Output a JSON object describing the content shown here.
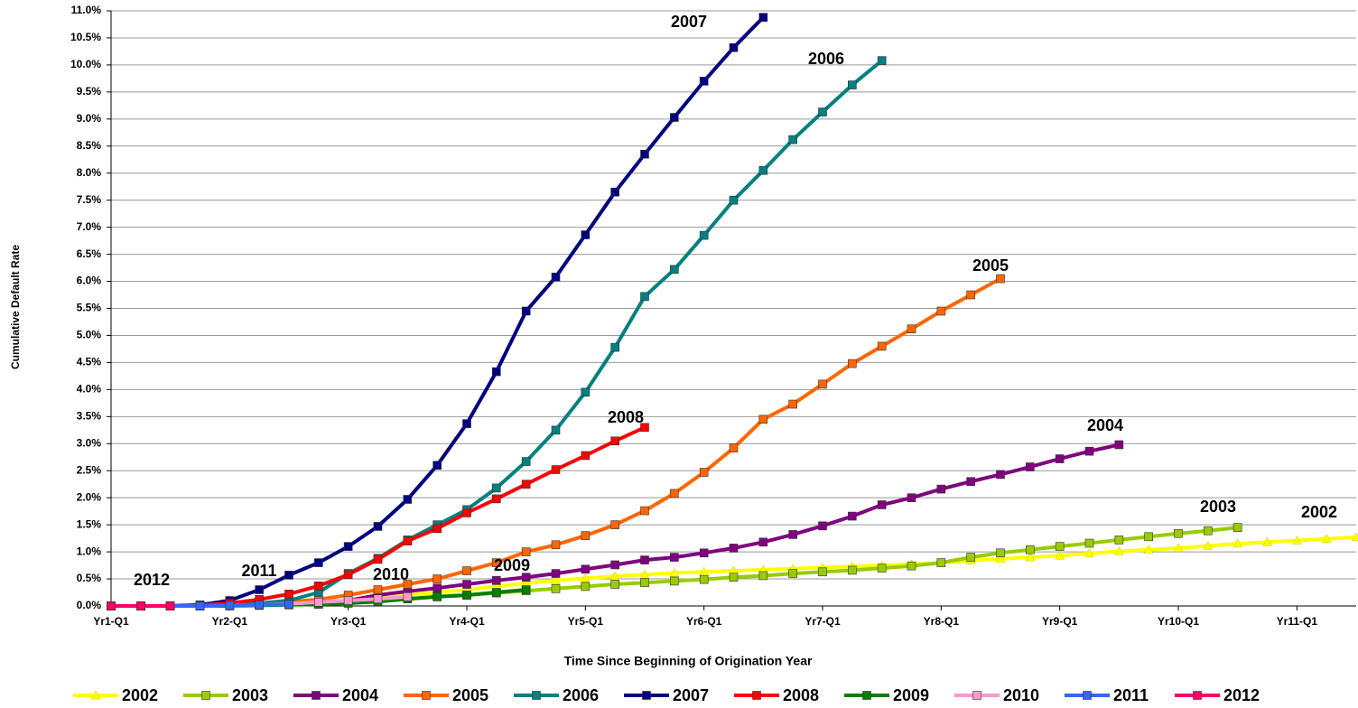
{
  "chart_data": {
    "type": "line",
    "y_label": "Cumulative Default Rate",
    "x_label": "Time Since Beginning of Origination Year",
    "categories": [
      "Yr1-Q1",
      null,
      null,
      null,
      "Yr2-Q1",
      null,
      null,
      null,
      "Yr3-Q1",
      null,
      null,
      null,
      "Yr4-Q1",
      null,
      null,
      null,
      "Yr5-Q1",
      null,
      null,
      null,
      "Yr6-Q1",
      null,
      null,
      null,
      "Yr7-Q1",
      null,
      null,
      null,
      "Yr8-Q1",
      null,
      null,
      null,
      "Yr9-Q1",
      null,
      null,
      null,
      "Yr10-Q1",
      null,
      null,
      null,
      "Yr11-Q1",
      null,
      null
    ],
    "ylim": [
      0,
      11
    ],
    "yticks": [
      {
        "value": 0,
        "label": "0.0%"
      },
      {
        "value": 0.5,
        "label": "0.5%"
      },
      {
        "value": 1,
        "label": "1.0%"
      },
      {
        "value": 1.5,
        "label": "1.5%"
      },
      {
        "value": 2,
        "label": "2.0%"
      },
      {
        "value": 2.5,
        "label": "2.5%"
      },
      {
        "value": 3,
        "label": "3.0%"
      },
      {
        "value": 3.5,
        "label": "3.5%"
      },
      {
        "value": 4,
        "label": "4.0%"
      },
      {
        "value": 4.5,
        "label": "4.5%"
      },
      {
        "value": 5,
        "label": "5.0%"
      },
      {
        "value": 5.5,
        "label": "5.5%"
      },
      {
        "value": 6,
        "label": "6.0%"
      },
      {
        "value": 6.5,
        "label": "6.5%"
      },
      {
        "value": 7,
        "label": "7.0%"
      },
      {
        "value": 7.5,
        "label": "7.5%"
      },
      {
        "value": 8,
        "label": "8.0%"
      },
      {
        "value": 8.5,
        "label": "8.5%"
      },
      {
        "value": 9,
        "label": "9.0%"
      },
      {
        "value": 9.5,
        "label": "9.5%"
      },
      {
        "value": 10,
        "label": "10.0%"
      },
      {
        "value": 10.5,
        "label": "10.5%"
      },
      {
        "value": 11,
        "label": "11.0%"
      }
    ],
    "grid": true,
    "legend": "bottom",
    "series": [
      {
        "name": "2002",
        "color": "#ffff00",
        "values": [
          0,
          0,
          0,
          0,
          0.01,
          0.03,
          0.05,
          0.07,
          0.1,
          0.15,
          0.2,
          0.25,
          0.3,
          0.36,
          0.42,
          0.47,
          0.51,
          0.55,
          0.58,
          0.61,
          0.63,
          0.65,
          0.67,
          0.69,
          0.71,
          0.73,
          0.75,
          0.77,
          0.8,
          0.84,
          0.87,
          0.9,
          0.93,
          0.97,
          1.01,
          1.04,
          1.07,
          1.11,
          1.15,
          1.18,
          1.21,
          1.24,
          1.27
        ]
      },
      {
        "name": "2003",
        "color": "#99cc00",
        "values": [
          0,
          0,
          0,
          0,
          0.01,
          0.02,
          0.03,
          0.05,
          0.07,
          0.1,
          0.13,
          0.17,
          0.2,
          0.24,
          0.28,
          0.32,
          0.36,
          0.4,
          0.43,
          0.46,
          0.49,
          0.53,
          0.56,
          0.6,
          0.63,
          0.66,
          0.7,
          0.74,
          0.8,
          0.9,
          0.98,
          1.04,
          1.1,
          1.16,
          1.22,
          1.28,
          1.34,
          1.39,
          1.45,
          null,
          null,
          null,
          null
        ]
      },
      {
        "name": "2004",
        "color": "#800080",
        "values": [
          0,
          0,
          0,
          0,
          0.01,
          0.02,
          0.04,
          0.07,
          0.1,
          0.2,
          0.27,
          0.33,
          0.4,
          0.47,
          0.53,
          0.6,
          0.68,
          0.76,
          0.85,
          0.9,
          0.98,
          1.07,
          1.18,
          1.32,
          1.48,
          1.66,
          1.87,
          2,
          2.16,
          2.3,
          2.43,
          2.57,
          2.72,
          2.86,
          2.98,
          null,
          null,
          null,
          null,
          null,
          null,
          null,
          null
        ]
      },
      {
        "name": "2005",
        "color": "#ff6600",
        "values": [
          0,
          0,
          0,
          0,
          0.01,
          0.03,
          0.07,
          0.12,
          0.2,
          0.3,
          0.4,
          0.5,
          0.65,
          0.8,
          1,
          1.13,
          1.3,
          1.5,
          1.76,
          2.08,
          2.47,
          2.92,
          3.45,
          3.73,
          4.1,
          4.48,
          4.8,
          5.12,
          5.45,
          5.75,
          6.05,
          null,
          null,
          null,
          null,
          null,
          null,
          null,
          null,
          null,
          null,
          null,
          null
        ]
      },
      {
        "name": "2006",
        "color": "#008080",
        "values": [
          0,
          0,
          0,
          0,
          0.02,
          0.05,
          0.1,
          0.25,
          0.6,
          0.88,
          1.22,
          1.5,
          1.78,
          2.18,
          2.67,
          3.25,
          3.95,
          4.78,
          5.72,
          6.22,
          6.85,
          7.5,
          8.05,
          8.62,
          9.13,
          9.63,
          10.08,
          null,
          null,
          null,
          null,
          null,
          null,
          null,
          null,
          null,
          null,
          null,
          null,
          null,
          null,
          null,
          null
        ]
      },
      {
        "name": "2007",
        "color": "#000080",
        "values": [
          0,
          0,
          0,
          0.02,
          0.1,
          0.3,
          0.57,
          0.8,
          1.1,
          1.47,
          1.97,
          2.6,
          3.37,
          4.33,
          5.45,
          6.08,
          6.86,
          7.65,
          8.35,
          9.03,
          9.7,
          10.32,
          10.88,
          null,
          null,
          null,
          null,
          null,
          null,
          null,
          null,
          null,
          null,
          null,
          null,
          null,
          null,
          null,
          null,
          null,
          null,
          null,
          null
        ]
      },
      {
        "name": "2008",
        "color": "#ff0000",
        "values": [
          0,
          0,
          0,
          0.01,
          0.05,
          0.12,
          0.22,
          0.37,
          0.58,
          0.86,
          1.2,
          1.43,
          1.72,
          1.98,
          2.25,
          2.52,
          2.78,
          3.05,
          3.3,
          null,
          null,
          null,
          null,
          null,
          null,
          null,
          null,
          null,
          null,
          null,
          null,
          null,
          null,
          null,
          null,
          null,
          null,
          null,
          null,
          null,
          null,
          null,
          null
        ]
      },
      {
        "name": "2009",
        "color": "#008000",
        "values": [
          0,
          0,
          0,
          0,
          0,
          0.01,
          0.02,
          0.03,
          0.05,
          0.08,
          0.13,
          0.17,
          0.2,
          0.25,
          0.3,
          null,
          null,
          null,
          null,
          null,
          null,
          null,
          null,
          null,
          null,
          null,
          null,
          null,
          null,
          null,
          null,
          null,
          null,
          null,
          null,
          null,
          null,
          null,
          null,
          null,
          null,
          null,
          null
        ]
      },
      {
        "name": "2010",
        "color": "#ff99cc",
        "values": [
          0,
          0,
          0,
          0,
          0.01,
          0.02,
          0.04,
          0.07,
          0.1,
          0.13,
          0.17,
          null,
          null,
          null,
          null,
          null,
          null,
          null,
          null,
          null,
          null,
          null,
          null,
          null,
          null,
          null,
          null,
          null,
          null,
          null,
          null,
          null,
          null,
          null,
          null,
          null,
          null,
          null,
          null,
          null,
          null,
          null,
          null
        ]
      },
      {
        "name": "2011",
        "color": "#3366ff",
        "values": [
          0,
          0,
          0,
          0,
          0.01,
          0.02,
          0.03,
          null,
          null,
          null,
          null,
          null,
          null,
          null,
          null,
          null,
          null,
          null,
          null,
          null,
          null,
          null,
          null,
          null,
          null,
          null,
          null,
          null,
          null,
          null,
          null,
          null,
          null,
          null,
          null,
          null,
          null,
          null,
          null,
          null,
          null,
          null,
          null
        ]
      },
      {
        "name": "2012",
        "color": "#ff0066",
        "values": [
          0,
          0,
          0,
          null,
          null,
          null,
          null,
          null,
          null,
          null,
          null,
          null,
          null,
          null,
          null,
          null,
          null,
          null,
          null,
          null,
          null,
          null,
          null,
          null,
          null,
          null,
          null,
          null,
          null,
          null,
          null,
          null,
          null,
          null,
          null,
          null,
          null,
          null,
          null,
          null,
          null,
          null,
          null
        ]
      }
    ]
  }
}
